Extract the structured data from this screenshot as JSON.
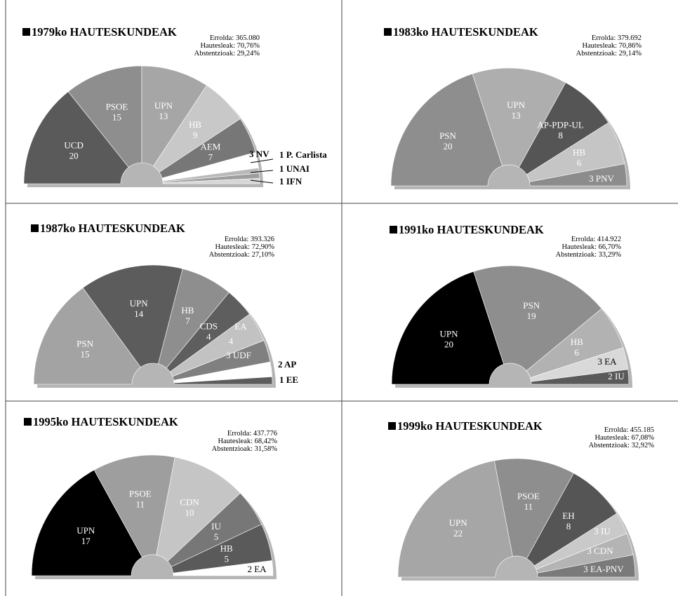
{
  "chart_data": [
    {
      "type": "pie",
      "title": "1979ko HAUTESKUNDEAK",
      "stats": [
        "Errolda: 365.080",
        "Hautesleak: 70,76%",
        "Abstentzioak: 29,24%"
      ],
      "categories": [
        "UCD",
        "PSOE",
        "UPN",
        "HB",
        "AEM",
        "NV",
        "P. Carlista",
        "UNAI",
        "IFN"
      ],
      "values": [
        20,
        15,
        13,
        9,
        7,
        3,
        1,
        1,
        1
      ],
      "colors": [
        "#5a5a5a",
        "#8e8e8e",
        "#a6a6a6",
        "#c8c8c8",
        "#777777",
        "#ffffff",
        "#b9b9b9",
        "#9e9e9e",
        "#d6d6d6"
      ],
      "labels": [
        "UCD\n20",
        "PSOE\n15",
        "UPN\n13",
        "HB\n9",
        "AEM\n7",
        "3 NV",
        "1 P. Carlista",
        "1 UNAI",
        "1 IFN"
      ]
    },
    {
      "type": "pie",
      "title": "1983ko HAUTESKUNDEAK",
      "stats": [
        "Errolda: 379.692",
        "Hautesleak: 70,86%",
        "Abstentzioak: 29,14%"
      ],
      "categories": [
        "PSN",
        "UPN",
        "AP-PDP-UL",
        "HB",
        "PNV"
      ],
      "values": [
        20,
        13,
        8,
        6,
        3
      ],
      "colors": [
        "#8e8e8e",
        "#aeaeae",
        "#555555",
        "#c5c5c5",
        "#8c8c8c"
      ],
      "labels": [
        "PSN\n20",
        "UPN\n13",
        "AP-PDP-UL\n8",
        "HB\n6",
        "3 PNV"
      ]
    },
    {
      "type": "pie",
      "title": "1987ko HAUTESKUNDEAK",
      "stats": [
        "Errolda: 393.326",
        "Hautesleak: 72,90%",
        "Abstentzioak: 27,10%"
      ],
      "categories": [
        "PSN",
        "UPN",
        "HB",
        "CDS",
        "EA",
        "UDF",
        "AP",
        "EE"
      ],
      "values": [
        15,
        14,
        7,
        4,
        4,
        3,
        2,
        1
      ],
      "colors": [
        "#a3a3a3",
        "#5c5c5c",
        "#8e8e8e",
        "#5e5e5e",
        "#c2c2c2",
        "#808080",
        "#ffffff",
        "#5c5c5c"
      ],
      "labels": [
        "PSN\n15",
        "UPN\n14",
        "HB\n7",
        "CDS\n4",
        "EA",
        "3 UDF",
        "2 AP",
        "1 EE"
      ],
      "extra_labels": [
        "4"
      ]
    },
    {
      "type": "pie",
      "title": "1991ko HAUTESKUNDEAK",
      "stats": [
        "Errolda: 414.922",
        "Hautesleak: 66,70%",
        "Abstentzioak: 33,29%"
      ],
      "categories": [
        "UPN",
        "PSN",
        "HB",
        "EA",
        "IU"
      ],
      "values": [
        20,
        19,
        6,
        3,
        2
      ],
      "colors": [
        "#000000",
        "#8e8e8e",
        "#b2b2b2",
        "#d9d9d9",
        "#5a5a5a"
      ],
      "labels": [
        "UPN\n20",
        "PSN\n19",
        "HB\n6",
        "3 EA",
        "2 IU"
      ]
    },
    {
      "type": "pie",
      "title": "1995ko HAUTESKUNDEAK",
      "stats": [
        "Errolda: 437.776",
        "Hautesleak: 68,42%",
        "Abstentzioak: 31,58%"
      ],
      "categories": [
        "UPN",
        "PSOE",
        "CDN",
        "IU",
        "HB",
        "EA"
      ],
      "values": [
        17,
        11,
        10,
        5,
        5,
        2
      ],
      "colors": [
        "#000000",
        "#9e9e9e",
        "#c5c5c5",
        "#777777",
        "#5a5a5a",
        "#ffffff"
      ],
      "labels": [
        "UPN\n17",
        "PSOE\n11",
        "CDN\n10",
        "IU\n5",
        "HB\n5",
        "2 EA"
      ]
    },
    {
      "type": "pie",
      "title": "1999ko HAUTESKUNDEAK",
      "stats": [
        "Errolda: 455.185",
        "Hautesleak: 67,08%",
        "Abstentzioak: 32,92%"
      ],
      "categories": [
        "UPN",
        "PSOE",
        "EH",
        "IU",
        "CDN",
        "EA-PNV"
      ],
      "values": [
        22,
        11,
        8,
        3,
        3,
        3
      ],
      "colors": [
        "#a6a6a6",
        "#8e8e8e",
        "#555555",
        "#c9c9c9",
        "#b4b4b4",
        "#7a7a7a"
      ],
      "labels": [
        "UPN\n22",
        "PSOE\n11",
        "EH\n8",
        "3 IU",
        "3 CDN",
        "3 EA-PNV"
      ]
    }
  ]
}
